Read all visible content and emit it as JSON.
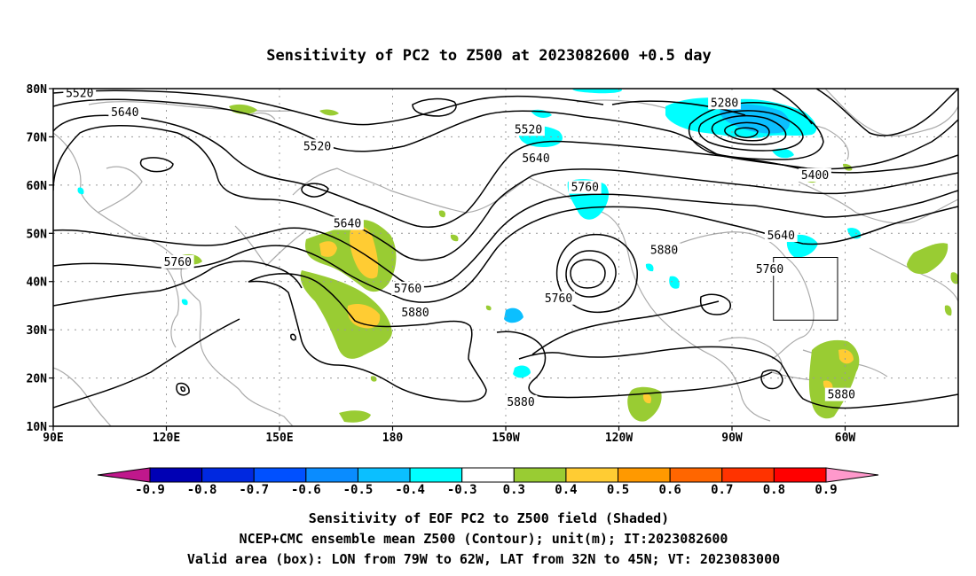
{
  "title": "Sensitivity of PC2 to Z500 at 2023082600 +0.5 day",
  "captions": {
    "line1": "Sensitivity of EOF PC2 to Z500 field (Shaded)",
    "line2": "NCEP+CMC ensemble mean Z500 (Contour); unit(m); IT:2023082600",
    "line3": "Valid area (box): LON from 79W to 62W, LAT from 32N to 45N; VT: 2023083000"
  },
  "map": {
    "lon_range": [
      90,
      330
    ],
    "lat_range": [
      10,
      80
    ],
    "x_ticks": [
      {
        "lon": 90,
        "label": "90E"
      },
      {
        "lon": 120,
        "label": "120E"
      },
      {
        "lon": 150,
        "label": "150E"
      },
      {
        "lon": 180,
        "label": "180"
      },
      {
        "lon": 210,
        "label": "150W"
      },
      {
        "lon": 240,
        "label": "120W"
      },
      {
        "lon": 270,
        "label": "90W"
      },
      {
        "lon": 300,
        "label": "60W"
      }
    ],
    "y_ticks": [
      {
        "lat": 10,
        "label": "10N"
      },
      {
        "lat": 20,
        "label": "20N"
      },
      {
        "lat": 30,
        "label": "30N"
      },
      {
        "lat": 40,
        "label": "40N"
      },
      {
        "lat": 50,
        "label": "50N"
      },
      {
        "lat": 60,
        "label": "60N"
      },
      {
        "lat": 70,
        "label": "70N"
      },
      {
        "lat": 80,
        "label": "80N"
      }
    ],
    "gridlines": "dotted",
    "valid_box": {
      "lon_w": 281,
      "lon_e": 298,
      "lat_s": 32,
      "lat_n": 45
    },
    "contour_labels": [
      {
        "text": "5520",
        "lon": 97,
        "lat": 79
      },
      {
        "text": "5640",
        "lon": 109,
        "lat": 75
      },
      {
        "text": "5520",
        "lon": 160,
        "lat": 68
      },
      {
        "text": "5640",
        "lon": 168,
        "lat": 52
      },
      {
        "text": "5760",
        "lon": 123,
        "lat": 44
      },
      {
        "text": "5760",
        "lon": 184,
        "lat": 38.5
      },
      {
        "text": "5880",
        "lon": 186,
        "lat": 33.5
      },
      {
        "text": "5520",
        "lon": 216,
        "lat": 71.5
      },
      {
        "text": "5640",
        "lon": 218,
        "lat": 65.5
      },
      {
        "text": "5760",
        "lon": 231,
        "lat": 59.5
      },
      {
        "text": "5760",
        "lon": 224,
        "lat": 36.5
      },
      {
        "text": "5280",
        "lon": 268,
        "lat": 77
      },
      {
        "text": "5400",
        "lon": 292,
        "lat": 62
      },
      {
        "text": "5640",
        "lon": 283,
        "lat": 49.5
      },
      {
        "text": "5760",
        "lon": 280,
        "lat": 42.5
      },
      {
        "text": "5880",
        "lon": 252,
        "lat": 46.5
      },
      {
        "text": "5880",
        "lon": 214,
        "lat": 15
      },
      {
        "text": "5880",
        "lon": 299,
        "lat": 16.5
      }
    ]
  },
  "colorbar": {
    "labels": [
      "-0.9",
      "-0.8",
      "-0.7",
      "-0.6",
      "-0.5",
      "-0.4",
      "-0.3",
      "0.3",
      "0.4",
      "0.5",
      "0.6",
      "0.7",
      "0.8",
      "0.9"
    ],
    "colors": [
      "#0000b4",
      "#0028e0",
      "#0050ff",
      "#0a8cff",
      "#0bbfff",
      "#00ffff",
      "#ffffff",
      "#99cc33",
      "#ffcc33",
      "#ff9900",
      "#ff6600",
      "#ff3300",
      "#ff0000"
    ],
    "low_extend_color": "#c0188c",
    "high_extend_color": "#ff99cc"
  },
  "shading_colors": {
    "positive_0_3": "#99cc33",
    "positive_0_4": "#ffcc33",
    "negative_0_3": "#00ffff",
    "negative_0_4": "#0bbfff"
  }
}
